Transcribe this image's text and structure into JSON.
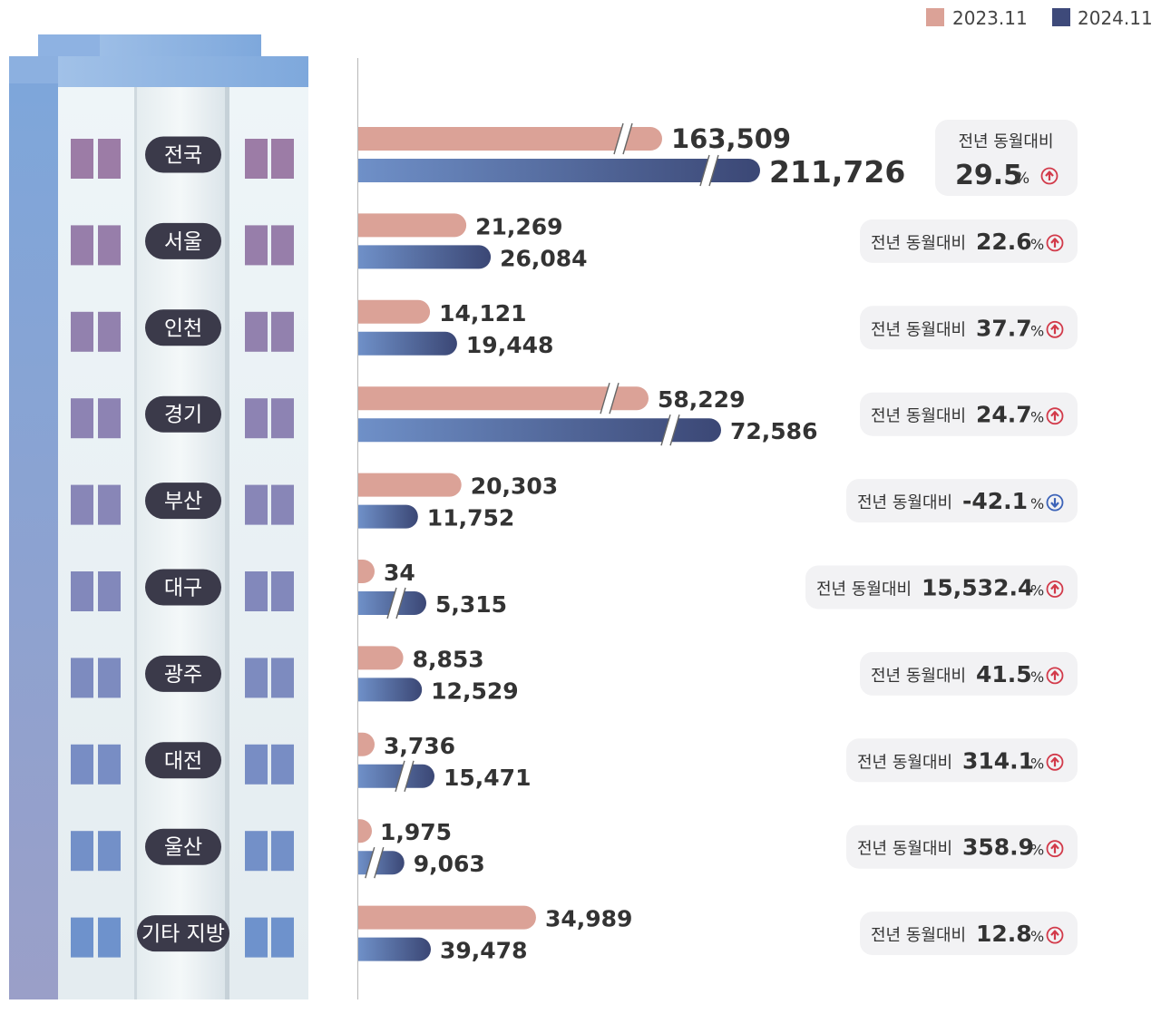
{
  "legend": [
    {
      "label": "2023.11",
      "color": "#dba297"
    },
    {
      "label": "2024.11",
      "color": "#3e4a7a"
    }
  ],
  "colors": {
    "prev_bar": "#dba297",
    "curr_bar_start": "#6f90c8",
    "curr_bar_end": "#3b4775",
    "pill": "#3b3a4a",
    "badge_bg": "#f2f2f4",
    "up_icon": "#d23a4a",
    "down_icon": "#3c63b8",
    "text": "#333333"
  },
  "chart_data": {
    "type": "bar",
    "categories": [
      "전국",
      "서울",
      "인천",
      "경기",
      "부산",
      "대구",
      "광주",
      "대전",
      "울산",
      "기타 지방"
    ],
    "series": [
      {
        "name": "2023.11",
        "values": [
          163509,
          21269,
          14121,
          58229,
          20303,
          34,
          8853,
          3736,
          1975,
          34989
        ]
      },
      {
        "name": "2024.11",
        "values": [
          211726,
          26084,
          19448,
          72586,
          11752,
          5315,
          12529,
          15471,
          9063,
          39478
        ]
      }
    ],
    "value_labels_prev": [
      "163,509",
      "21,269",
      "14,121",
      "58,229",
      "20,303",
      "34",
      "8,853",
      "3,736",
      "1,975",
      "34,989"
    ],
    "value_labels_curr": [
      "211,726",
      "26,084",
      "19,448",
      "72,586",
      "11,752",
      "5,315",
      "12,529",
      "15,471",
      "9,063",
      "39,478"
    ],
    "axis_breaks": {
      "prev": [
        true,
        false,
        false,
        true,
        false,
        false,
        false,
        false,
        false,
        false
      ],
      "curr": [
        true,
        false,
        false,
        true,
        false,
        true,
        false,
        true,
        true,
        false
      ]
    },
    "yoy_label": "전년 동월대비",
    "yoy_values": [
      "29.5",
      "22.6",
      "37.7",
      "24.7",
      "-42.1",
      "15,532.4",
      "41.5",
      "314.1",
      "358.9",
      "12.8"
    ],
    "yoy_unit": "%",
    "yoy_direction": [
      "up",
      "up",
      "up",
      "up",
      "down",
      "up",
      "up",
      "up",
      "up",
      "up"
    ],
    "legend_position": "top-right"
  }
}
